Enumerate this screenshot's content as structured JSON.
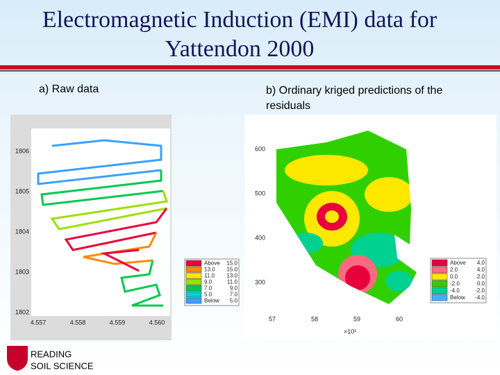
{
  "header": {
    "title": "Electromagnetic Induction (EMI) data  for Yattendon 2000"
  },
  "panels": [
    {
      "caption": "a) Raw data",
      "y_axis_labels": [
        "1806",
        "1805",
        "1804",
        "1803",
        "1802"
      ],
      "x_axis_labels": [
        "4.557",
        "4.558",
        "4.559",
        "4.560"
      ],
      "legend": [
        {
          "label": "Above",
          "value": "15.0",
          "color": "#e8003c"
        },
        {
          "label": "13.0",
          "value": "15.0",
          "color": "#ff8a00"
        },
        {
          "label": "11.0",
          "value": "13.0",
          "color": "#ffe800"
        },
        {
          "label": "9.0",
          "value": "11.0",
          "color": "#9be000"
        },
        {
          "label": "7.0",
          "value": "9.0",
          "color": "#00c850"
        },
        {
          "label": "5.0",
          "value": "7.0",
          "color": "#00d0d0"
        },
        {
          "label": "Below",
          "value": "5.0",
          "color": "#3aa0ff"
        }
      ]
    },
    {
      "caption": "b) Ordinary kriged predictions of the residuals",
      "y_axis_labels": [
        "600",
        "500",
        "400",
        "300"
      ],
      "x_axis_labels": [
        "57",
        "58",
        "59",
        "60"
      ],
      "x_axis_unit": "×10¹",
      "legend": [
        {
          "label": "Above",
          "value": "4.0",
          "color": "#e8003c"
        },
        {
          "label": "2.0",
          "value": "4.0",
          "color": "#ff6a80"
        },
        {
          "label": "0.0",
          "value": "2.0",
          "color": "#ffe800"
        },
        {
          "label": "-2.0",
          "value": "0.0",
          "color": "#30d000"
        },
        {
          "label": "-4.0",
          "value": "-2.0",
          "color": "#00d090"
        },
        {
          "label": "Below",
          "value": "-4.0",
          "color": "#40b0ff"
        }
      ]
    }
  ],
  "footer": {
    "org": "READING",
    "dept": "SOIL SCIENCE"
  }
}
